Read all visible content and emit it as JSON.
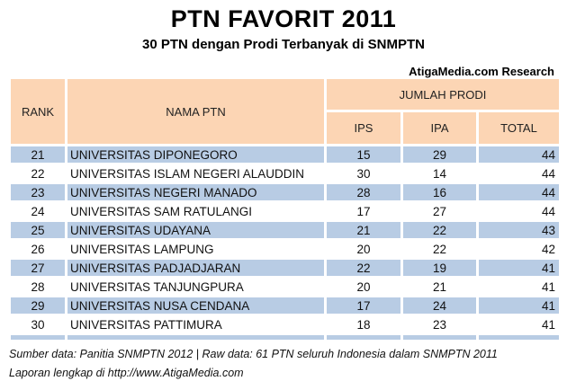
{
  "title": "PTN FAVORIT 2011",
  "subtitle": "30 PTN dengan Prodi Terbanyak di SNMPTN",
  "credit": "AtigaMedia.com Research",
  "headers": {
    "rank": "RANK",
    "name": "NAMA PTN",
    "group": "JUMLAH PRODI",
    "ips": "IPS",
    "ipa": "IPA",
    "total": "TOTAL"
  },
  "rows": [
    {
      "rank": "21",
      "name": "UNIVERSITAS DIPONEGORO",
      "ips": "15",
      "ipa": "29",
      "total": "44"
    },
    {
      "rank": "22",
      "name": "UNIVERSITAS ISLAM NEGERI ALAUDDIN",
      "ips": "30",
      "ipa": "14",
      "total": "44"
    },
    {
      "rank": "23",
      "name": "UNIVERSITAS NEGERI MANADO",
      "ips": "28",
      "ipa": "16",
      "total": "44"
    },
    {
      "rank": "24",
      "name": "UNIVERSITAS SAM RATULANGI",
      "ips": "17",
      "ipa": "27",
      "total": "44"
    },
    {
      "rank": "25",
      "name": "UNIVERSITAS UDAYANA",
      "ips": "21",
      "ipa": "22",
      "total": "43"
    },
    {
      "rank": "26",
      "name": "UNIVERSITAS LAMPUNG",
      "ips": "20",
      "ipa": "22",
      "total": "42"
    },
    {
      "rank": "27",
      "name": "UNIVERSITAS PADJADJARAN",
      "ips": "22",
      "ipa": "19",
      "total": "41"
    },
    {
      "rank": "28",
      "name": "UNIVERSITAS TANJUNGPURA",
      "ips": "20",
      "ipa": "21",
      "total": "41"
    },
    {
      "rank": "29",
      "name": "UNIVERSITAS NUSA CENDANA",
      "ips": "17",
      "ipa": "24",
      "total": "41"
    },
    {
      "rank": "30",
      "name": "UNIVERSITAS PATTIMURA",
      "ips": "18",
      "ipa": "23",
      "total": "41"
    }
  ],
  "footer": {
    "source": "Sumber data: Panitia SNMPTN 2012 | Raw data: 61 PTN seluruh Indonesia dalam SNMPTN 2011",
    "link": "Laporan lengkap di http://www.AtigaMedia.com"
  },
  "colors": {
    "header_bg": "#fcd5b4",
    "row_band": "#b8cce4"
  }
}
